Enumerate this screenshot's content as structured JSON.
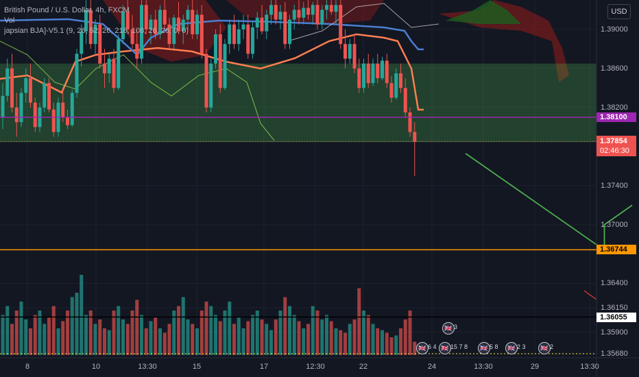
{
  "legend": {
    "line1": "British Pound / U.S. Dollar, 4h, FXCM",
    "line2": "Vol",
    "line3": "japsian BJA]-V5.1 (9, 26, 52, 26, 216, 108, 26, 26, 0, 0)"
  },
  "currency": "USD",
  "colors": {
    "background": "#131722",
    "bull": "#26a69a",
    "bear": "#ef5350",
    "green_zone": "#4caf50",
    "purple_line": "#9c27b0",
    "orange_line": "#ff9800",
    "black_line": "#000000",
    "projection": "#4caf50",
    "cloud_red": "#8b1a1a",
    "cloud_green": "#1b5e20",
    "baseline": "#ff7f50",
    "kijun": "#4a7fd4",
    "chikou": "#8bc34a",
    "lagging_white": "#c8c8c8"
  },
  "chart_data": {
    "type": "line",
    "y_ticks": [
      "1.39000",
      "1.38600",
      "1.38200",
      "1.37400",
      "1.37000",
      "1.36400",
      "1.36150",
      "1.35900",
      "1.35680"
    ],
    "x_ticks": [
      "8",
      "10",
      "13:30",
      "15",
      "17",
      "12:30",
      "22",
      "24",
      "13:30",
      "29",
      "13:30"
    ],
    "ylim": [
      1.3562,
      1.393
    ],
    "levels": [
      {
        "price": "1.38100",
        "value": 1.381,
        "color": "#9c27b0",
        "text_color": "#ffffff"
      },
      {
        "price": "1.36744",
        "value": 1.36744,
        "color": "#ff9800",
        "text_color": "#000000"
      },
      {
        "price": "1.36055",
        "value": 1.36055,
        "color": "#000000",
        "text_color": "#000000",
        "bg": "#ffffff"
      }
    ],
    "current_price": {
      "price": "1.37854",
      "countdown": "02:46:30",
      "value": 1.37854,
      "color": "#ef5350"
    },
    "zones": [
      {
        "name": "",
        "from": 1.3785,
        "to": 1.3865,
        "color": "#4caf50"
      }
    ],
    "projection_path": [
      {
        "bar": 100,
        "value": 1.3773
      },
      {
        "bar": 130,
        "value": 1.3674
      },
      {
        "bar": 130,
        "value": 1.37
      },
      {
        "bar": 136,
        "value": 1.372
      }
    ],
    "candles": [
      [
        1.381,
        1.3845,
        1.3798,
        1.3832
      ],
      [
        1.3832,
        1.387,
        1.3826,
        1.386
      ],
      [
        1.386,
        1.3875,
        1.3815,
        1.382
      ],
      [
        1.382,
        1.3835,
        1.379,
        1.3805
      ],
      [
        1.3805,
        1.384,
        1.38,
        1.3835
      ],
      [
        1.3835,
        1.386,
        1.3825,
        1.385
      ],
      [
        1.385,
        1.3865,
        1.382,
        1.3825
      ],
      [
        1.3825,
        1.383,
        1.3795,
        1.38
      ],
      [
        1.38,
        1.3825,
        1.3795,
        1.382
      ],
      [
        1.382,
        1.385,
        1.3815,
        1.3845
      ],
      [
        1.3845,
        1.385,
        1.3815,
        1.3818
      ],
      [
        1.3818,
        1.3825,
        1.379,
        1.3795
      ],
      [
        1.3795,
        1.383,
        1.379,
        1.3825
      ],
      [
        1.3825,
        1.384,
        1.3805,
        1.381
      ],
      [
        1.381,
        1.3818,
        1.3798,
        1.3802
      ],
      [
        1.3802,
        1.3838,
        1.38,
        1.3835
      ],
      [
        1.3835,
        1.388,
        1.383,
        1.3875
      ],
      [
        1.3875,
        1.3905,
        1.3862,
        1.3898
      ],
      [
        1.3898,
        1.393,
        1.3885,
        1.392
      ],
      [
        1.392,
        1.393,
        1.388,
        1.3885
      ],
      [
        1.3885,
        1.391,
        1.3875,
        1.3905
      ],
      [
        1.3905,
        1.3915,
        1.386,
        1.3865
      ],
      [
        1.3865,
        1.388,
        1.384,
        1.3855
      ],
      [
        1.3855,
        1.3875,
        1.3845,
        1.387
      ],
      [
        1.387,
        1.388,
        1.3835,
        1.384
      ],
      [
        1.384,
        1.3895,
        1.3838,
        1.389
      ],
      [
        1.389,
        1.3925,
        1.3885,
        1.3918
      ],
      [
        1.3918,
        1.393,
        1.3895,
        1.39
      ],
      [
        1.39,
        1.3915,
        1.388,
        1.3885
      ],
      [
        1.3885,
        1.39,
        1.386,
        1.387
      ],
      [
        1.387,
        1.393,
        1.3865,
        1.3925
      ],
      [
        1.3925,
        1.393,
        1.3895,
        1.39
      ],
      [
        1.39,
        1.3915,
        1.3885,
        1.391
      ],
      [
        1.391,
        1.392,
        1.389,
        1.3895
      ],
      [
        1.3895,
        1.3925,
        1.389,
        1.392
      ],
      [
        1.392,
        1.393,
        1.39,
        1.3905
      ],
      [
        1.3905,
        1.3912,
        1.388,
        1.3885
      ],
      [
        1.3885,
        1.3915,
        1.388,
        1.3912
      ],
      [
        1.3912,
        1.3928,
        1.3895,
        1.3898
      ],
      [
        1.3898,
        1.3915,
        1.3885,
        1.391
      ],
      [
        1.391,
        1.3925,
        1.39,
        1.392
      ],
      [
        1.392,
        1.393,
        1.389,
        1.3895
      ],
      [
        1.3895,
        1.392,
        1.389,
        1.3915
      ],
      [
        1.3915,
        1.3925,
        1.387,
        1.3875
      ],
      [
        1.3875,
        1.388,
        1.3815,
        1.382
      ],
      [
        1.382,
        1.387,
        1.3815,
        1.3865
      ],
      [
        1.3865,
        1.39,
        1.386,
        1.3895
      ],
      [
        1.3895,
        1.3905,
        1.3835,
        1.384
      ],
      [
        1.384,
        1.389,
        1.3838,
        1.3885
      ],
      [
        1.3885,
        1.391,
        1.3875,
        1.3905
      ],
      [
        1.3905,
        1.3915,
        1.388,
        1.3885
      ],
      [
        1.3885,
        1.391,
        1.3878,
        1.39
      ],
      [
        1.39,
        1.3915,
        1.389,
        1.3905
      ],
      [
        1.3905,
        1.3915,
        1.387,
        1.3875
      ],
      [
        1.3875,
        1.3908,
        1.387,
        1.3902
      ],
      [
        1.3902,
        1.3918,
        1.389,
        1.3912
      ],
      [
        1.3912,
        1.3925,
        1.3895,
        1.3898
      ],
      [
        1.3898,
        1.392,
        1.389,
        1.3915
      ],
      [
        1.3915,
        1.393,
        1.3905,
        1.3925
      ],
      [
        1.3925,
        1.393,
        1.3905,
        1.391
      ],
      [
        1.391,
        1.3925,
        1.39,
        1.3918
      ],
      [
        1.3918,
        1.3928,
        1.388,
        1.3885
      ],
      [
        1.3885,
        1.3915,
        1.388,
        1.391
      ],
      [
        1.391,
        1.3925,
        1.39,
        1.392
      ],
      [
        1.392,
        1.393,
        1.3905,
        1.3912
      ],
      [
        1.3912,
        1.3928,
        1.3905,
        1.3922
      ],
      [
        1.3922,
        1.393,
        1.391,
        1.3915
      ],
      [
        1.3915,
        1.3928,
        1.3905,
        1.3925
      ],
      [
        1.3925,
        1.393,
        1.39,
        1.3905
      ],
      [
        1.3905,
        1.3925,
        1.39,
        1.392
      ],
      [
        1.392,
        1.393,
        1.391,
        1.3925
      ],
      [
        1.3925,
        1.393,
        1.3915,
        1.3918
      ],
      [
        1.3918,
        1.393,
        1.3905,
        1.3925
      ],
      [
        1.3925,
        1.393,
        1.388,
        1.3885
      ],
      [
        1.3885,
        1.39,
        1.386,
        1.387
      ],
      [
        1.387,
        1.389,
        1.3865,
        1.3885
      ],
      [
        1.3885,
        1.3895,
        1.3855,
        1.386
      ],
      [
        1.386,
        1.387,
        1.3835,
        1.384
      ],
      [
        1.384,
        1.387,
        1.3835,
        1.3865
      ],
      [
        1.3865,
        1.3875,
        1.384,
        1.3845
      ],
      [
        1.3845,
        1.387,
        1.3842,
        1.3865
      ],
      [
        1.3865,
        1.3875,
        1.3845,
        1.385
      ],
      [
        1.385,
        1.3872,
        1.3848,
        1.3868
      ],
      [
        1.3868,
        1.3875,
        1.384,
        1.3845
      ],
      [
        1.3845,
        1.3852,
        1.3825,
        1.383
      ],
      [
        1.383,
        1.386,
        1.3828,
        1.3855
      ],
      [
        1.3855,
        1.3865,
        1.3835,
        1.384
      ],
      [
        1.384,
        1.385,
        1.381,
        1.3815
      ],
      [
        1.3815,
        1.382,
        1.379,
        1.3795
      ],
      [
        1.3795,
        1.3805,
        1.375,
        1.3785
      ]
    ],
    "volume": [
      0.45,
      0.55,
      0.35,
      0.5,
      0.6,
      0.4,
      0.3,
      0.45,
      0.5,
      0.35,
      0.42,
      0.55,
      0.3,
      0.38,
      0.5,
      0.65,
      0.7,
      0.9,
      0.45,
      0.5,
      0.35,
      0.4,
      0.3,
      0.28,
      0.5,
      0.55,
      0.4,
      0.35,
      0.5,
      0.62,
      0.45,
      0.3,
      0.38,
      0.42,
      0.3,
      0.25,
      0.35,
      0.5,
      0.55,
      0.65,
      0.4,
      0.35,
      0.3,
      0.5,
      0.6,
      0.55,
      0.45,
      0.38,
      0.5,
      0.6,
      0.35,
      0.42,
      0.3,
      0.38,
      0.45,
      0.5,
      0.4,
      0.35,
      0.28,
      0.4,
      0.5,
      0.65,
      0.55,
      0.45,
      0.38,
      0.3,
      0.35,
      0.55,
      0.5,
      0.4,
      0.45,
      0.38,
      0.3,
      0.28,
      0.25,
      0.35,
      0.4,
      0.75,
      0.5,
      0.45,
      0.35,
      0.3,
      0.28,
      0.25,
      0.2,
      0.22,
      0.3,
      0.4,
      0.5,
      0.15
    ],
    "events": [
      {
        "x": 653,
        "y": 478,
        "count": "3"
      },
      {
        "x": 615,
        "y": 507,
        "count": "6 4"
      },
      {
        "x": 648,
        "y": 507,
        "count": "15 7 8"
      },
      {
        "x": 705,
        "y": 507,
        "count": "5 8"
      },
      {
        "x": 745,
        "y": 507,
        "count": "2 3"
      },
      {
        "x": 793,
        "y": 507,
        "count": "2"
      }
    ]
  }
}
